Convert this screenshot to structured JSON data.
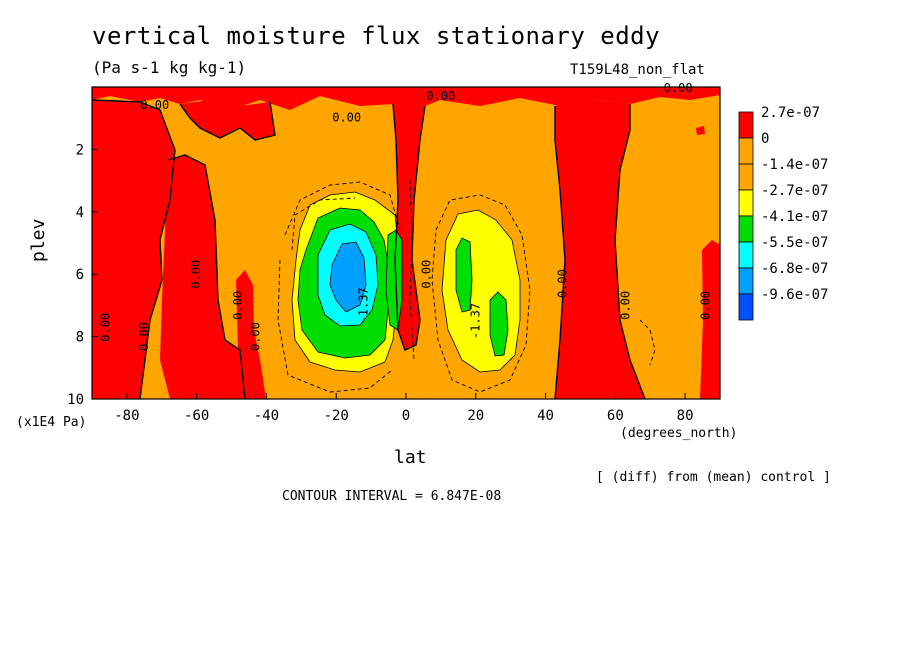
{
  "header": {
    "title": "vertical moisture flux stationary eddy",
    "units": "(Pa s-1 kg kg-1)",
    "run_name": "T159L48_non_flat"
  },
  "footer": {
    "note": "[ (diff) from (mean) control ]",
    "contour_interval": "CONTOUR INTERVAL = 6.847E-08"
  },
  "chart_data": {
    "type": "heatmap",
    "title": "vertical moisture flux stationary eddy",
    "subtitle": "(Pa s-1 kg kg-1)",
    "xlabel": "lat",
    "xunit": "(degrees_north)",
    "ylabel": "plev",
    "yunit": "(x1E4 Pa)",
    "xlim": [
      -90,
      90
    ],
    "ylim": [
      10,
      0
    ],
    "x_ticks": [
      -80,
      -60,
      -40,
      -20,
      0,
      20,
      40,
      60,
      80
    ],
    "y_ticks": [
      2,
      4,
      6,
      8,
      10
    ],
    "colorbar": {
      "labels": [
        "2.7e-07",
        "0",
        "-1.4e-07",
        "-2.7e-07",
        "-4.1e-07",
        "-5.5e-07",
        "-6.8e-07",
        "-9.6e-07"
      ],
      "colors": [
        "#ff0000",
        "#ffa500",
        "#ffa500",
        "#ffff00",
        "#00dd00",
        "#00ffff",
        "#00a0ff",
        "#0050ff"
      ]
    },
    "contour_labels": [
      {
        "text": "0.00",
        "lat": -72,
        "plev": 0.6,
        "rotate": 0
      },
      {
        "text": "0.00",
        "lat": -17,
        "plev": 1.0,
        "rotate": 0
      },
      {
        "text": "0.00",
        "lat": 10,
        "plev": 0.3,
        "rotate": 0
      },
      {
        "text": "0.00",
        "lat": 78,
        "plev": 0.05,
        "rotate": 0
      },
      {
        "text": "0.00",
        "lat": -86,
        "plev": 7.7,
        "rotate": -90
      },
      {
        "text": "0.00",
        "lat": -75,
        "plev": 8.0,
        "rotate": -90
      },
      {
        "text": "0.00",
        "lat": -60,
        "plev": 6.0,
        "rotate": -90
      },
      {
        "text": "0.00",
        "lat": -48,
        "plev": 7.0,
        "rotate": -90
      },
      {
        "text": "0.00",
        "lat": -43,
        "plev": 8.0,
        "rotate": -90
      },
      {
        "text": "0.00",
        "lat": 6,
        "plev": 6.0,
        "rotate": -90
      },
      {
        "text": "0.00",
        "lat": 45,
        "plev": 6.3,
        "rotate": -90
      },
      {
        "text": "0.00",
        "lat": 63,
        "plev": 7.0,
        "rotate": -90
      },
      {
        "text": "0.00",
        "lat": 86,
        "plev": 7.0,
        "rotate": -90
      },
      {
        "text": "-1.37",
        "lat": 20,
        "plev": 7.5,
        "rotate": -90
      },
      {
        "text": "-1.37",
        "lat": -12,
        "plev": 7.0,
        "rotate": -90
      }
    ],
    "legend": "right"
  }
}
